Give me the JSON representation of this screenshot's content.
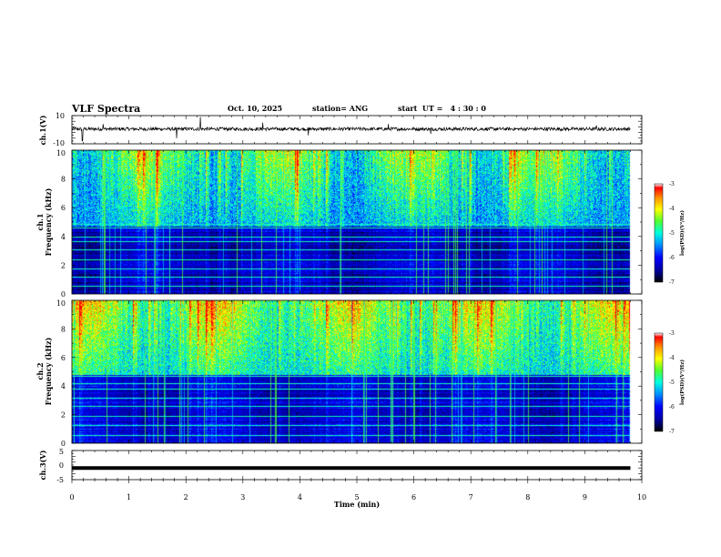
{
  "header": {
    "title": "VLF Spectra",
    "date": "Oct. 10, 2025",
    "station": "station= ANG",
    "start_ut": "start  UT =   4 : 30 : 0"
  },
  "chart_data": [
    {
      "type": "line",
      "name": "ch1-waveform",
      "ylabel": "ch.1(V)",
      "ylim": [
        -10,
        10
      ],
      "ytick_labels": [
        "10",
        "-10"
      ],
      "x_range_min": [
        0,
        9.8
      ],
      "baseline_v": 0.5,
      "noise_amplitude_v": 1.2,
      "spikes": [
        {
          "t": 0.18,
          "v": -8
        },
        {
          "t": 0.19,
          "v": -8
        },
        {
          "t": 0.55,
          "v": 4
        },
        {
          "t": 1.84,
          "v": -6
        },
        {
          "t": 2.25,
          "v": 9
        },
        {
          "t": 3.35,
          "v": 5
        },
        {
          "t": 4.15,
          "v": -4
        },
        {
          "t": 5.55,
          "v": 4
        },
        {
          "t": 6.3,
          "v": -3
        },
        {
          "t": 9.2,
          "v": 3
        }
      ]
    },
    {
      "type": "heatmap",
      "name": "ch1-spectrogram",
      "ylabel": "Frequency  (kHz)",
      "channel_label": "ch.1",
      "ylim": [
        0,
        10
      ],
      "ytick_labels": [
        "0",
        "2",
        "4",
        "6",
        "8",
        "10"
      ],
      "x_range_min": [
        0,
        9.8
      ],
      "upper_band_khz": [
        4.7,
        10
      ],
      "upper_band_level": -4.7,
      "lower_band_level": -6.3,
      "lines_khz": [
        0.6,
        1.2,
        1.8,
        2.4,
        3.1,
        3.7,
        4.0,
        4.6,
        4.85
      ],
      "colorbar": {
        "min": -7,
        "max": -3,
        "ticks": [
          "-3",
          "-4",
          "-5",
          "-6",
          "-7"
        ],
        "label": "log(PSD)(V²/Hz)"
      }
    },
    {
      "type": "heatmap",
      "name": "ch2-spectrogram",
      "ylabel": "Frequency  (kHz)",
      "channel_label": "ch.2",
      "ylim": [
        0,
        10
      ],
      "ytick_labels": [
        "0",
        "2",
        "4",
        "6",
        "8",
        "10"
      ],
      "x_range_min": [
        0,
        9.8
      ],
      "upper_band_khz": [
        4.8,
        10
      ],
      "upper_band_level": -4.4,
      "lower_band_level": -6.2,
      "lines_khz": [
        0.6,
        1.3,
        1.9,
        2.6,
        3.2,
        3.8,
        4.2,
        4.7
      ],
      "colorbar": {
        "min": -7,
        "max": -3,
        "ticks": [
          "-3",
          "-4",
          "-5",
          "-6",
          "-7"
        ],
        "label": "log(PSD)(V²/Hz)"
      }
    },
    {
      "type": "line",
      "name": "ch3-waveform",
      "ylabel": "ch.3(V)",
      "ylim": [
        -5,
        5
      ],
      "ytick_labels": [
        "5",
        "0",
        "-5"
      ],
      "x_range_min": [
        0,
        9.8
      ],
      "level_v": -1.0
    }
  ],
  "x_axis": {
    "label": "Time  (min)",
    "xlim": [
      0,
      10
    ],
    "tick_labels": [
      "0",
      "1",
      "2",
      "3",
      "4",
      "5",
      "6",
      "7",
      "8",
      "9",
      "10"
    ]
  },
  "colors": {
    "waveform": "#000000",
    "frame": "#000000",
    "colormap": [
      "#000000",
      "#00004a",
      "#0000e0",
      "#0090ff",
      "#00ffe0",
      "#50ff30",
      "#ffff00",
      "#ff9000",
      "#ff0000"
    ]
  }
}
